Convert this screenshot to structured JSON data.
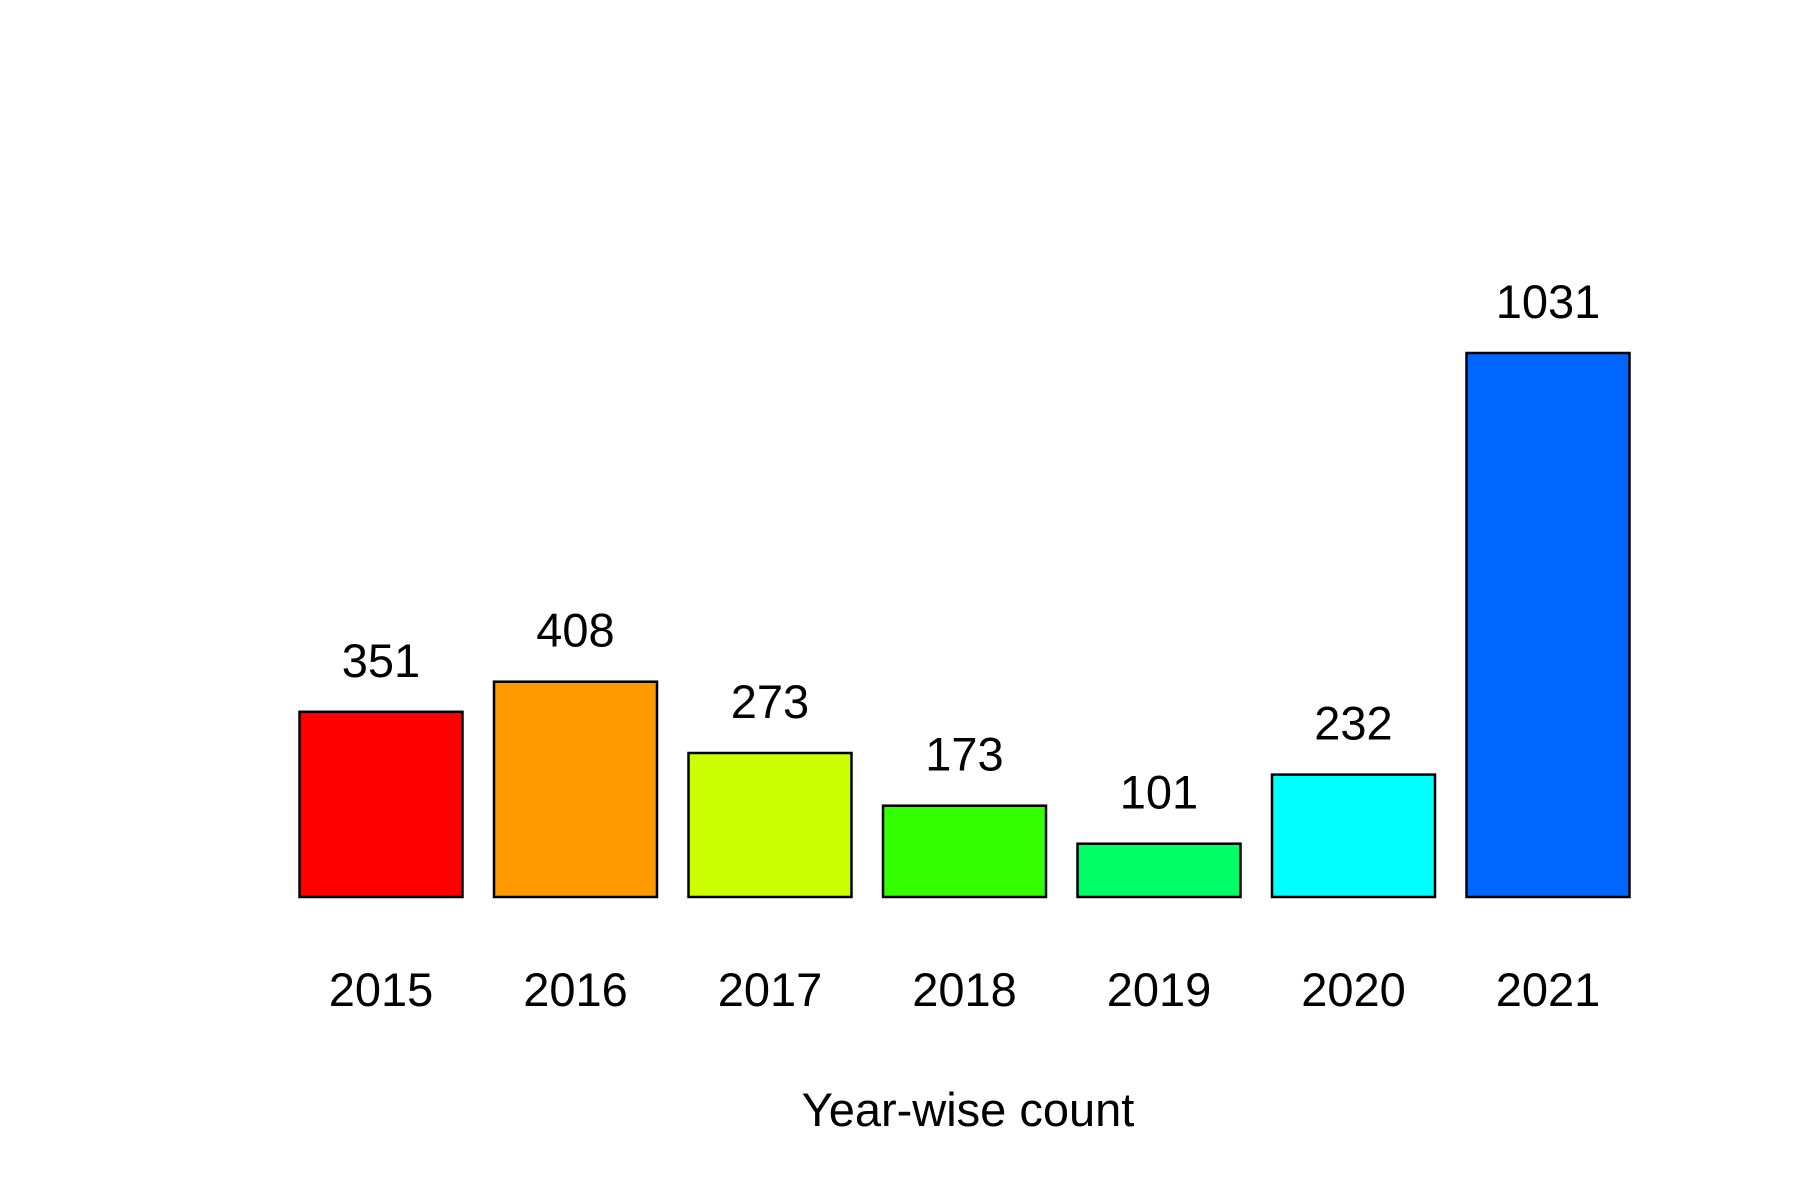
{
  "chart_data": {
    "type": "bar",
    "categories": [
      "2015",
      "2016",
      "2017",
      "2018",
      "2019",
      "2020",
      "2021"
    ],
    "values": [
      351,
      408,
      273,
      173,
      101,
      232,
      1031
    ],
    "data_labels": [
      "351",
      "408",
      "273",
      "173",
      "101",
      "232",
      "1031"
    ],
    "colors": [
      "#FF0000",
      "#FF9900",
      "#CCFF00",
      "#33FF00",
      "#00FF66",
      "#00FFFF",
      "#0066FF"
    ],
    "bar_outline_color": "#000000",
    "title": "",
    "xlabel": "Year-wise count",
    "ylabel": "",
    "ylim": [
      0,
      1031
    ],
    "grid": false,
    "legend": "none",
    "y_axis_visible": false
  }
}
